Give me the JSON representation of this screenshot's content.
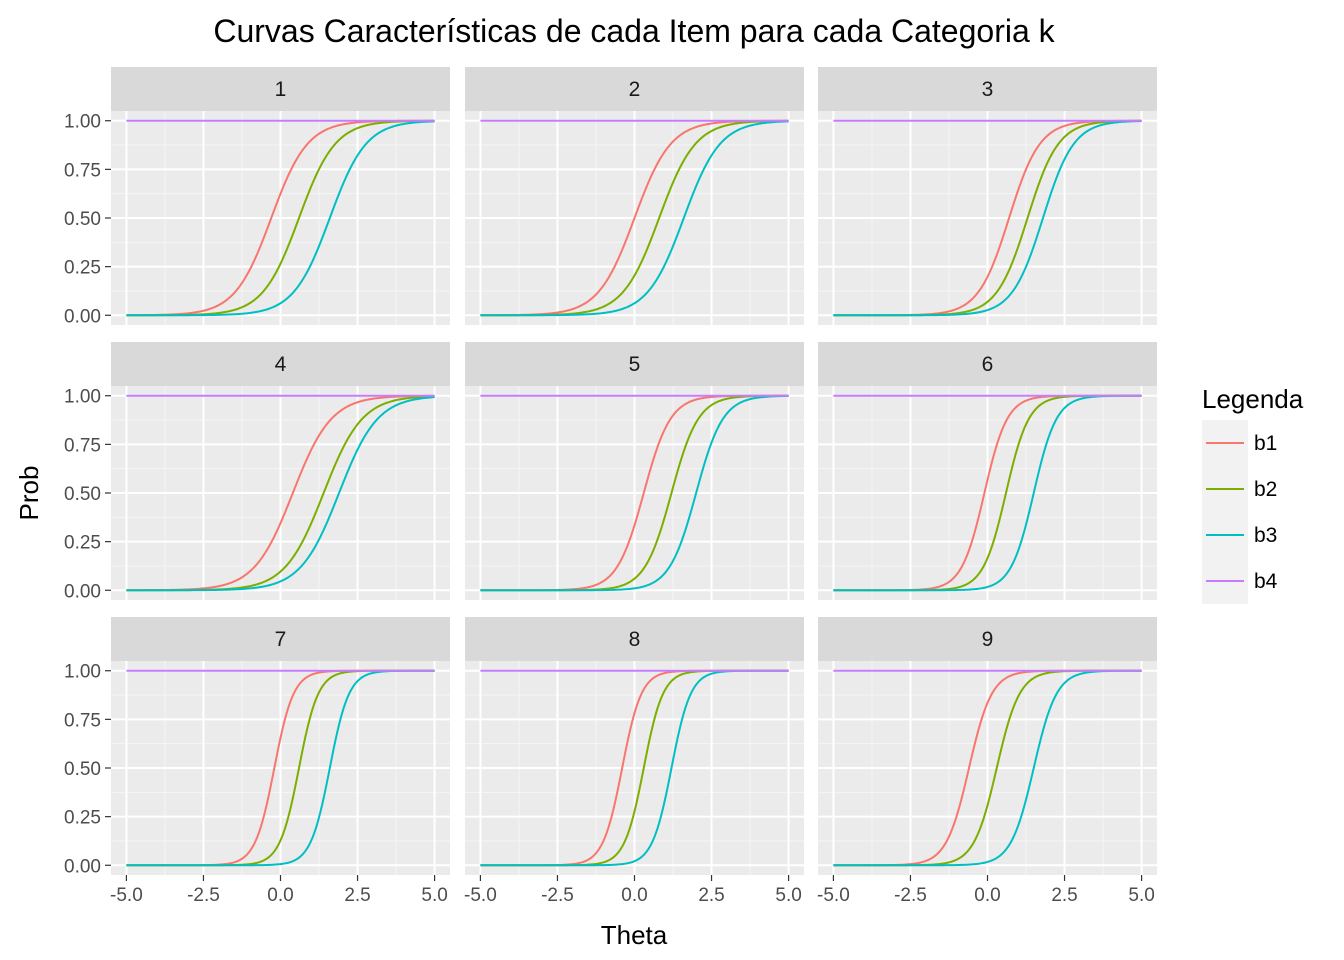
{
  "chart_data": {
    "type": "line",
    "title": "Curvas Características de cada Item para cada Categoria k",
    "xlabel": "Theta",
    "ylabel": "Prob",
    "xlim": [
      -5,
      5
    ],
    "ylim": [
      0,
      1
    ],
    "x_ticks": [
      "-5.0",
      "-2.5",
      "0.0",
      "2.5",
      "5.0"
    ],
    "x_tick_values": [
      -5,
      -2.5,
      0,
      2.5,
      5
    ],
    "y_ticks": [
      "0.00",
      "0.25",
      "0.50",
      "0.75",
      "1.00"
    ],
    "y_tick_values": [
      0,
      0.25,
      0.5,
      0.75,
      1
    ],
    "grid": true,
    "legend": {
      "title": "Legenda",
      "placement": "right",
      "entries": [
        "b1",
        "b2",
        "b3",
        "b4"
      ]
    },
    "colors": {
      "b1": "#F8766D",
      "b2": "#7CAE00",
      "b3": "#00BFC4",
      "b4": "#C77CFF"
    },
    "facets": [
      {
        "label": "1",
        "b1": -0.3,
        "b2": 0.6,
        "b3": 1.6,
        "a": 1.7
      },
      {
        "label": "2",
        "b1": 0.0,
        "b2": 0.8,
        "b3": 1.6,
        "a": 1.7
      },
      {
        "label": "3",
        "b1": 0.7,
        "b2": 1.3,
        "b3": 1.8,
        "a": 2.0
      },
      {
        "label": "4",
        "b1": 0.4,
        "b2": 1.4,
        "b3": 1.9,
        "a": 1.6
      },
      {
        "label": "5",
        "b1": 0.3,
        "b2": 1.2,
        "b3": 2.0,
        "a": 2.3
      },
      {
        "label": "6",
        "b1": -0.1,
        "b2": 0.6,
        "b3": 1.5,
        "a": 2.7
      },
      {
        "label": "7",
        "b1": -0.2,
        "b2": 0.6,
        "b3": 1.6,
        "a": 3.2
      },
      {
        "label": "8",
        "b1": -0.4,
        "b2": 0.3,
        "b3": 1.2,
        "a": 3.2
      },
      {
        "label": "9",
        "b1": -0.6,
        "b2": 0.3,
        "b3": 1.5,
        "a": 2.7
      }
    ]
  }
}
